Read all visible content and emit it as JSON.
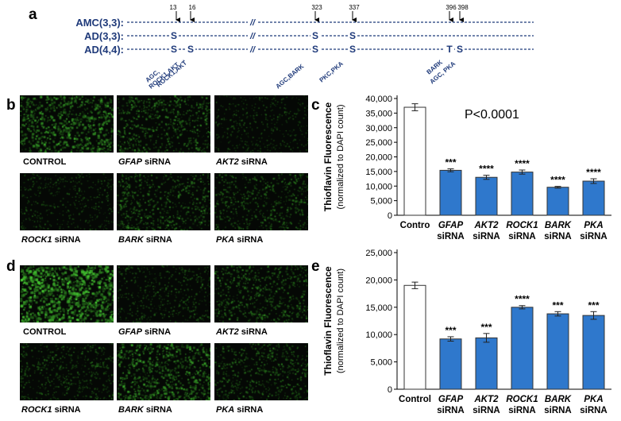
{
  "panels": {
    "a": "a",
    "b": "b",
    "c": "c",
    "d": "d",
    "e": "e"
  },
  "panel_a": {
    "positions": [
      "13",
      "16",
      "323",
      "337",
      "396",
      "398"
    ],
    "rows": [
      {
        "label": "AMC(3,3):"
      },
      {
        "label": "AD(3,3):",
        "sites": [
          "S",
          "S",
          "S"
        ]
      },
      {
        "label": "AD(4,4):",
        "sites": [
          "S",
          "S",
          "S",
          "S",
          "T",
          "S"
        ]
      }
    ],
    "break_mark": "//",
    "kinases": [
      "AGC,\nROCK1,AKT",
      "ROCK1,AKT",
      "AGC,BARK",
      "PKC,PKA",
      "BARK",
      "AGC, PKA"
    ]
  },
  "panel_b": {
    "images": [
      {
        "gene": "",
        "suffix": "CONTROL",
        "brightness": 0.7
      },
      {
        "gene": "GFAP",
        "suffix": " siRNA",
        "brightness": 0.5
      },
      {
        "gene": "AKT2",
        "suffix": " siRNA",
        "brightness": 0.3
      },
      {
        "gene": "ROCK1",
        "suffix": " siRNA",
        "brightness": 0.3
      },
      {
        "gene": "BARK",
        "suffix": " siRNA",
        "brightness": 0.5
      },
      {
        "gene": "PKA",
        "suffix": " siRNA",
        "brightness": 0.45
      }
    ]
  },
  "panel_d": {
    "images": [
      {
        "gene": "",
        "suffix": "CONTROL",
        "brightness": 0.9
      },
      {
        "gene": "GFAP",
        "suffix": " siRNA",
        "brightness": 0.35
      },
      {
        "gene": "AKT2",
        "suffix": " siRNA",
        "brightness": 0.5
      },
      {
        "gene": "ROCK1",
        "suffix": " siRNA",
        "brightness": 0.4
      },
      {
        "gene": "BARK",
        "suffix": " siRNA",
        "brightness": 0.65
      },
      {
        "gene": "PKA",
        "suffix": " siRNA",
        "brightness": 0.45
      }
    ]
  },
  "chart_data": [
    {
      "type": "bar",
      "title": "",
      "ylabel": "Thioflavin Fluorescence",
      "ylabel2": "(normalized to DAPI count)",
      "ylim": [
        0,
        40000
      ],
      "yticks": [
        "0",
        "5,000",
        "10,000",
        "15,000",
        "20,000",
        "25,000",
        "30,000",
        "35,000",
        "40,000"
      ],
      "annotation": "P<0.0001",
      "categories": [
        {
          "line1": "Contro",
          "line2": "",
          "italic": false
        },
        {
          "line1": "GFAP",
          "line2": "siRNA",
          "italic": true
        },
        {
          "line1": "AKT2",
          "line2": "siRNA",
          "italic": true
        },
        {
          "line1": "ROCK1",
          "line2": "siRNA",
          "italic": true
        },
        {
          "line1": "BARK",
          "line2": "siRNA",
          "italic": true
        },
        {
          "line1": "PKA",
          "line2": "siRNA",
          "italic": true
        }
      ],
      "values": [
        37000,
        15400,
        13000,
        14800,
        9600,
        11700
      ],
      "errors": [
        1200,
        500,
        700,
        700,
        300,
        800
      ],
      "significance": [
        "",
        "***",
        "****",
        "****",
        "****",
        "****"
      ],
      "colors": [
        "#ffffff",
        "#2f78cc",
        "#2f78cc",
        "#2f78cc",
        "#2f78cc",
        "#2f78cc"
      ]
    },
    {
      "type": "bar",
      "title": "",
      "ylabel": "Thioflavin Fluorescence",
      "ylabel2": "(normalized to DAPI count)",
      "ylim": [
        0,
        25000
      ],
      "yticks": [
        "0",
        "5,000",
        "10,000",
        "15,000",
        "20,000",
        "25,000"
      ],
      "annotation": "",
      "categories": [
        {
          "line1": "Control",
          "line2": "",
          "italic": false
        },
        {
          "line1": "GFAP",
          "line2": "siRNA",
          "italic": true
        },
        {
          "line1": "AKT2",
          "line2": "siRNA",
          "italic": true
        },
        {
          "line1": "ROCK1",
          "line2": "siRNA",
          "italic": true
        },
        {
          "line1": "BARK",
          "line2": "siRNA",
          "italic": true
        },
        {
          "line1": "PKA",
          "line2": "siRNA",
          "italic": true
        }
      ],
      "values": [
        19000,
        9200,
        9400,
        15000,
        13800,
        13500
      ],
      "errors": [
        600,
        400,
        800,
        300,
        400,
        700
      ],
      "significance": [
        "",
        "***",
        "***",
        "****",
        "***",
        "***"
      ],
      "colors": [
        "#ffffff",
        "#2f78cc",
        "#2f78cc",
        "#2f78cc",
        "#2f78cc",
        "#2f78cc"
      ]
    }
  ]
}
